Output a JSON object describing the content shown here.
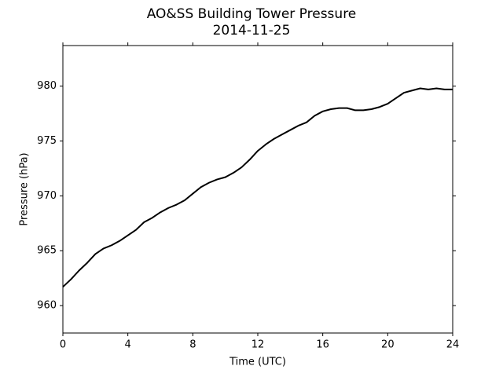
{
  "chart_data": {
    "type": "line",
    "title": "AO&SS Building Tower Pressure",
    "subtitle": "2014-11-25",
    "x_label": "Time (UTC)",
    "y_label": "Pressure (hPa)",
    "x": [
      0,
      0.5,
      1,
      1.5,
      2,
      2.5,
      3,
      3.5,
      4,
      4.5,
      5,
      5.5,
      6,
      6.5,
      7,
      7.5,
      8,
      8.5,
      9,
      9.5,
      10,
      10.5,
      11,
      11.5,
      12,
      12.5,
      13,
      13.5,
      14,
      14.5,
      15,
      15.5,
      16,
      16.5,
      17,
      17.5,
      18,
      18.5,
      19,
      19.5,
      20,
      20.5,
      21,
      21.5,
      22,
      22.5,
      23,
      23.5,
      24
    ],
    "series": [
      {
        "name": "Pressure",
        "color": "#000000",
        "values": [
          961.7,
          962.4,
          963.2,
          963.9,
          964.7,
          965.2,
          965.5,
          965.9,
          966.4,
          966.9,
          967.6,
          968.0,
          968.5,
          968.9,
          969.2,
          969.6,
          970.2,
          970.8,
          971.2,
          971.5,
          971.7,
          972.1,
          972.6,
          973.3,
          974.1,
          974.7,
          975.2,
          975.6,
          976.0,
          976.4,
          976.7,
          977.3,
          977.7,
          977.9,
          978.0,
          978.0,
          977.8,
          977.8,
          977.9,
          978.1,
          978.4,
          978.9,
          979.4,
          979.6,
          979.8,
          979.7,
          979.8,
          979.7,
          979.7
        ]
      }
    ],
    "xlim": [
      0,
      24
    ],
    "xticks": [
      0,
      4,
      8,
      12,
      16,
      20,
      24
    ],
    "ylim": [
      957.5,
      983.7
    ],
    "yticks": [
      960,
      965,
      970,
      975,
      980
    ],
    "grid": false
  }
}
